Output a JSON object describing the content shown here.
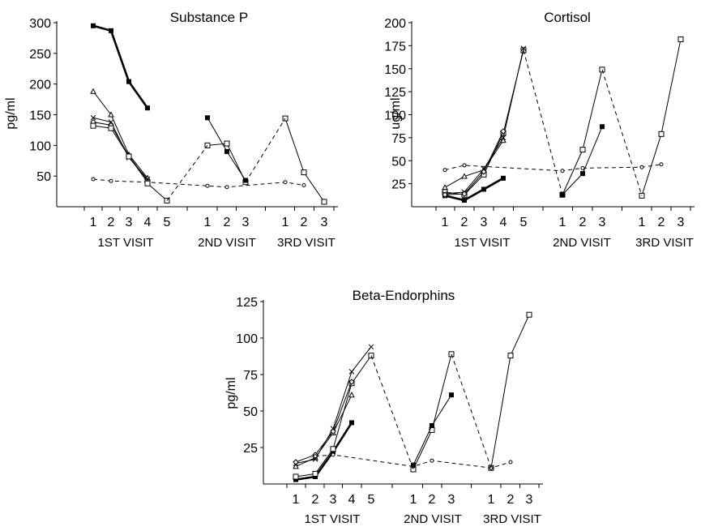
{
  "chart_data": [
    {
      "type": "line",
      "title": "Substance P",
      "ylabel": "pg/ml",
      "xlabel": "",
      "ylim": [
        0,
        300
      ],
      "yticks": [
        50,
        100,
        150,
        200,
        250,
        300
      ],
      "categories": [
        "1",
        "2",
        "3",
        "4",
        "5",
        "1",
        "2",
        "3",
        "1",
        "2",
        "3"
      ],
      "visit_labels": [
        "1ST VISIT",
        "2ND VISIT",
        "3RD VISIT"
      ],
      "series": [
        {
          "style": "bold",
          "marker": "filled-square",
          "segments": [
            {
              "x": [
                1,
                2,
                3,
                4
              ],
              "y": [
                295,
                287,
                204,
                161
              ]
            }
          ]
        },
        {
          "style": "solid",
          "marker": "triangle",
          "segments": [
            {
              "x": [
                1,
                2,
                3,
                4
              ],
              "y": [
                188,
                150,
                85,
                47
              ]
            }
          ]
        },
        {
          "style": "solid",
          "marker": "cross",
          "segments": [
            {
              "x": [
                1,
                2,
                3,
                4
              ],
              "y": [
                145,
                138,
                80,
                45
              ]
            }
          ]
        },
        {
          "style": "solid",
          "marker": "diamond",
          "segments": [
            {
              "x": [
                1,
                2,
                3,
                4
              ],
              "y": [
                138,
                133,
                83,
                42
              ]
            }
          ]
        },
        {
          "style": "solid",
          "marker": "square",
          "segments": [
            {
              "x": [
                1,
                2,
                3,
                4
              ],
              "y": [
                132,
                128,
                82,
                40
              ]
            }
          ]
        },
        {
          "style": "dashed",
          "marker": "circle",
          "segments": [
            {
              "x": [
                1,
                2,
                4,
                6,
                7,
                9,
                10
              ],
              "y": [
                45,
                42,
                40,
                34,
                32,
                40,
                35
              ]
            }
          ]
        },
        {
          "style": "solid",
          "marker": "square",
          "segments": [
            {
              "x": [
                4,
                5
              ],
              "y": [
                38,
                10
              ]
            },
            {
              "x": [
                6,
                7,
                8
              ],
              "y": [
                100,
                103,
                40
              ]
            },
            {
              "x": [
                9,
                10,
                11
              ],
              "y": [
                144,
                56,
                8
              ]
            }
          ]
        },
        {
          "style": "dashed",
          "marker": "none",
          "segments": [
            {
              "x": [
                5,
                6
              ],
              "y": [
                10,
                100
              ]
            },
            {
              "x": [
                8,
                9
              ],
              "y": [
                40,
                144
              ]
            }
          ]
        },
        {
          "style": "solid",
          "marker": "filled-square",
          "segments": [
            {
              "x": [
                6,
                7,
                8
              ],
              "y": [
                145,
                90,
                43
              ]
            }
          ]
        }
      ]
    },
    {
      "type": "line",
      "title": "Cortisol",
      "ylabel": "ug/ml",
      "xlabel": "",
      "ylim": [
        0,
        200
      ],
      "yticks": [
        25,
        50,
        75,
        100,
        125,
        150,
        175,
        200
      ],
      "categories": [
        "1",
        "2",
        "3",
        "4",
        "5",
        "1",
        "2",
        "3",
        "1",
        "2",
        "3"
      ],
      "visit_labels": [
        "1ST VISIT",
        "2ND VISIT",
        "3RD VISIT"
      ],
      "series": [
        {
          "style": "bold",
          "marker": "filled-square",
          "segments": [
            {
              "x": [
                1,
                2,
                3,
                4
              ],
              "y": [
                12,
                7,
                19,
                31
              ]
            }
          ]
        },
        {
          "style": "solid",
          "marker": "square",
          "segments": [
            {
              "x": [
                1,
                2,
                3,
                4,
                5
              ],
              "y": [
                16,
                13,
                35,
                80,
                170
              ]
            },
            {
              "x": [
                6,
                7,
                8
              ],
              "y": [
                13,
                62,
                149
              ]
            },
            {
              "x": [
                9,
                10,
                11
              ],
              "y": [
                12,
                79,
                182
              ]
            }
          ]
        },
        {
          "style": "solid",
          "marker": "triangle",
          "segments": [
            {
              "x": [
                1,
                2,
                3,
                4
              ],
              "y": [
                21,
                33,
                40,
                72
              ]
            }
          ]
        },
        {
          "style": "solid",
          "marker": "cross",
          "segments": [
            {
              "x": [
                1,
                2,
                3,
                4,
                5
              ],
              "y": [
                14,
                16,
                41,
                75,
                172
              ]
            }
          ]
        },
        {
          "style": "solid",
          "marker": "diamond",
          "segments": [
            {
              "x": [
                1,
                2,
                3,
                4
              ],
              "y": [
                13,
                14,
                38,
                82
              ]
            }
          ]
        },
        {
          "style": "dashed",
          "marker": "circle",
          "segments": [
            {
              "x": [
                1,
                2,
                6,
                7,
                9,
                10
              ],
              "y": [
                40,
                45,
                39,
                42,
                43,
                46
              ]
            }
          ]
        },
        {
          "style": "dashed",
          "marker": "none",
          "segments": [
            {
              "x": [
                5,
                6
              ],
              "y": [
                170,
                13
              ]
            },
            {
              "x": [
                8,
                9
              ],
              "y": [
                149,
                12
              ]
            }
          ]
        },
        {
          "style": "solid",
          "marker": "filled-square",
          "segments": [
            {
              "x": [
                6,
                7,
                8
              ],
              "y": [
                13,
                36,
                87
              ]
            }
          ]
        }
      ]
    },
    {
      "type": "line",
      "title": "Beta-Endorphins",
      "ylabel": "pg/ml",
      "xlabel": "",
      "ylim": [
        0,
        125
      ],
      "yticks": [
        25,
        50,
        75,
        100,
        125
      ],
      "categories": [
        "1",
        "2",
        "3",
        "4",
        "5",
        "1",
        "2",
        "3",
        "1",
        "2",
        "3"
      ],
      "visit_labels": [
        "1ST VISIT",
        "2ND VISIT",
        "3RD VISIT"
      ],
      "series": [
        {
          "style": "bold",
          "marker": "filled-square",
          "segments": [
            {
              "x": [
                1,
                2,
                3,
                4
              ],
              "y": [
                3,
                5,
                22,
                42
              ]
            }
          ]
        },
        {
          "style": "solid",
          "marker": "square",
          "segments": [
            {
              "x": [
                1,
                2,
                3,
                4,
                5
              ],
              "y": [
                5,
                7,
                24,
                69,
                88
              ]
            },
            {
              "x": [
                6,
                7,
                8
              ],
              "y": [
                10,
                37,
                89
              ]
            },
            {
              "x": [
                9,
                10,
                11
              ],
              "y": [
                11,
                88,
                116
              ]
            }
          ]
        },
        {
          "style": "solid",
          "marker": "triangle",
          "segments": [
            {
              "x": [
                1,
                2,
                3,
                4
              ],
              "y": [
                12,
                18,
                35,
                61
              ]
            }
          ]
        },
        {
          "style": "solid",
          "marker": "cross",
          "segments": [
            {
              "x": [
                1,
                2,
                3,
                4,
                5
              ],
              "y": [
                14,
                17,
                38,
                77,
                94
              ]
            }
          ]
        },
        {
          "style": "solid",
          "marker": "diamond",
          "segments": [
            {
              "x": [
                1,
                2,
                3,
                4
              ],
              "y": [
                15,
                20,
                36,
                70
              ]
            }
          ]
        },
        {
          "style": "dashed",
          "marker": "circle",
          "segments": [
            {
              "x": [
                2,
                3,
                6,
                7,
                9,
                10
              ],
              "y": [
                19,
                20,
                12,
                16,
                11,
                15
              ]
            }
          ]
        },
        {
          "style": "dashed",
          "marker": "none",
          "segments": [
            {
              "x": [
                5,
                6
              ],
              "y": [
                88,
                10
              ]
            },
            {
              "x": [
                8,
                9
              ],
              "y": [
                89,
                11
              ]
            }
          ]
        },
        {
          "style": "solid",
          "marker": "filled-square",
          "segments": [
            {
              "x": [
                6,
                7,
                8
              ],
              "y": [
                13,
                40,
                61
              ]
            }
          ]
        }
      ]
    }
  ]
}
